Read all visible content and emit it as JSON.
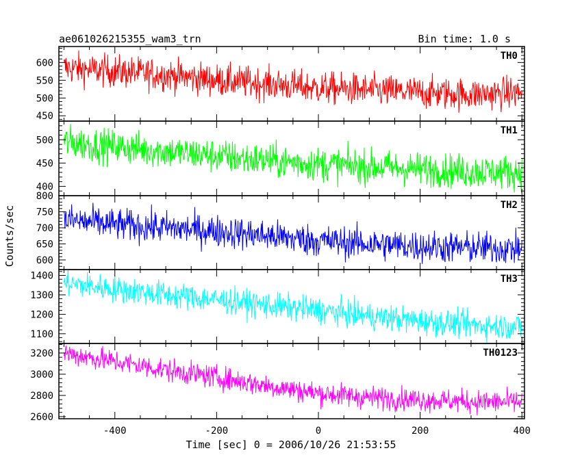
{
  "chart_data": {
    "type": "line",
    "title": "ae061026215355_wam3_trn",
    "subtitle": "Bin time: 1.0 s",
    "xlabel": "Time [sec] 0 = 2006/10/26 21:53:55",
    "ylabel": "Counts/sec",
    "xlim": [
      -510,
      405
    ],
    "xticks": [
      -400,
      -200,
      0,
      200,
      400
    ],
    "grid": false,
    "panels": [
      {
        "name": "TH0",
        "color": "#ff0000",
        "ylim": [
          435,
          645
        ],
        "yticks": [
          450,
          500,
          550,
          600
        ],
        "x": [
          -500,
          -400,
          -300,
          -200,
          -100,
          0,
          100,
          200,
          300,
          400
        ],
        "y": [
          585,
          575,
          565,
          550,
          540,
          528,
          522,
          515,
          510,
          515
        ],
        "noise": 50
      },
      {
        "name": "TH1",
        "color": "#00ff00",
        "ylim": [
          380,
          540
        ],
        "yticks": [
          400,
          450,
          500
        ],
        "x": [
          -500,
          -400,
          -300,
          -200,
          -100,
          0,
          100,
          200,
          300,
          400
        ],
        "y": [
          495,
          485,
          475,
          465,
          455,
          448,
          442,
          437,
          432,
          430
        ],
        "noise": 40
      },
      {
        "name": "TH2",
        "color": "#0000ff",
        "ylim": [
          570,
          800
        ],
        "yticks": [
          600,
          650,
          700,
          750,
          800
        ],
        "x": [
          -500,
          -400,
          -300,
          -200,
          -100,
          0,
          100,
          200,
          300,
          400
        ],
        "y": [
          725,
          710,
          700,
          690,
          675,
          660,
          650,
          642,
          638,
          635
        ],
        "noise": 55
      },
      {
        "name": "TH3",
        "color": "#00ffff",
        "ylim": [
          1050,
          1430
        ],
        "yticks": [
          1100,
          1200,
          1300,
          1400
        ],
        "x": [
          -500,
          -400,
          -300,
          -200,
          -100,
          0,
          100,
          200,
          300,
          400
        ],
        "y": [
          1360,
          1330,
          1300,
          1275,
          1245,
          1220,
          1190,
          1165,
          1145,
          1135
        ],
        "noise": 75
      },
      {
        "name": "TH0123",
        "color": "#ff00ff",
        "ylim": [
          2580,
          3290
        ],
        "yticks": [
          2600,
          2800,
          3000,
          3200
        ],
        "x": [
          -500,
          -400,
          -300,
          -200,
          -100,
          0,
          100,
          200,
          300,
          400
        ],
        "y": [
          3200,
          3120,
          3040,
          2970,
          2890,
          2820,
          2780,
          2760,
          2740,
          2735
        ],
        "noise": 120
      }
    ]
  }
}
